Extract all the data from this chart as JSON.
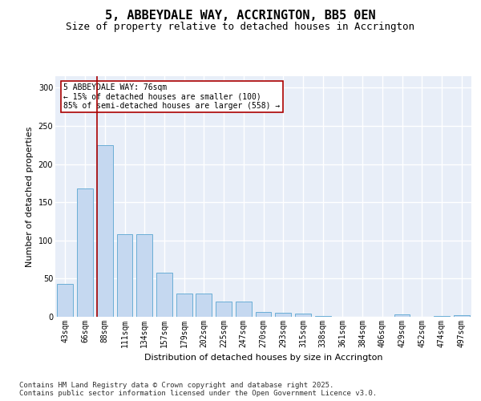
{
  "title": "5, ABBEYDALE WAY, ACCRINGTON, BB5 0EN",
  "subtitle": "Size of property relative to detached houses in Accrington",
  "xlabel": "Distribution of detached houses by size in Accrington",
  "ylabel": "Number of detached properties",
  "categories": [
    "43sqm",
    "66sqm",
    "88sqm",
    "111sqm",
    "134sqm",
    "157sqm",
    "179sqm",
    "202sqm",
    "225sqm",
    "247sqm",
    "270sqm",
    "293sqm",
    "315sqm",
    "338sqm",
    "361sqm",
    "384sqm",
    "406sqm",
    "429sqm",
    "452sqm",
    "474sqm",
    "497sqm"
  ],
  "values": [
    43,
    168,
    225,
    108,
    108,
    58,
    30,
    30,
    20,
    20,
    6,
    5,
    4,
    1,
    0,
    0,
    0,
    3,
    0,
    1,
    2
  ],
  "bar_color": "#c5d8f0",
  "bar_edgecolor": "#6aaed6",
  "bg_color": "#e8eef8",
  "grid_color": "#ffffff",
  "vline_x": 1.62,
  "vline_color": "#aa0000",
  "annotation_text": "5 ABBEYDALE WAY: 76sqm\n← 15% of detached houses are smaller (100)\n85% of semi-detached houses are larger (558) →",
  "annotation_box_color": "#aa0000",
  "annotation_bg": "#ffffff",
  "ylim": [
    0,
    315
  ],
  "yticks": [
    0,
    50,
    100,
    150,
    200,
    250,
    300
  ],
  "footer": "Contains HM Land Registry data © Crown copyright and database right 2025.\nContains public sector information licensed under the Open Government Licence v3.0.",
  "title_fontsize": 11,
  "subtitle_fontsize": 9,
  "xlabel_fontsize": 8,
  "ylabel_fontsize": 8,
  "tick_fontsize": 7,
  "footer_fontsize": 6.5,
  "annot_fontsize": 7
}
